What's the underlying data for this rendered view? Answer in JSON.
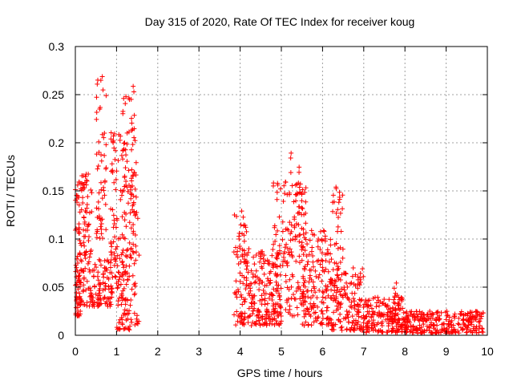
{
  "chart_data": {
    "type": "scatter",
    "title": "Day 315 of 2020, Rate Of TEC Index for receiver koug",
    "xlabel": "GPS time / hours",
    "ylabel": "ROTI / TECUs",
    "xlim": [
      0,
      10
    ],
    "ylim": [
      0,
      0.3
    ],
    "xticks": [
      0,
      1,
      2,
      3,
      4,
      5,
      6,
      7,
      8,
      9,
      10
    ],
    "yticks": [
      0,
      0.05,
      0.1,
      0.15,
      0.2,
      0.25,
      0.3
    ],
    "xtick_labels": [
      "0",
      "1",
      "2",
      "3",
      "4",
      "5",
      "6",
      "7",
      "8",
      "9",
      "10"
    ],
    "ytick_labels": [
      "0",
      "0.05",
      "0.1",
      "0.15",
      "0.2",
      "0.25",
      "0.3"
    ],
    "grid": true,
    "marker": "+",
    "marker_color": "#ff0000",
    "series": [
      {
        "name": "ROTI",
        "clusters": [
          {
            "x_range": [
              0.0,
              0.12
            ],
            "y_range": [
              0.02,
              0.16
            ],
            "count": 60
          },
          {
            "x_range": [
              0.08,
              0.4
            ],
            "y_range": [
              0.03,
              0.17
            ],
            "count": 110
          },
          {
            "x_range": [
              0.4,
              0.9
            ],
            "y_range": [
              0.03,
              0.08
            ],
            "count": 90
          },
          {
            "x_range": [
              0.5,
              0.75
            ],
            "y_range": [
              0.1,
              0.27
            ],
            "count": 55
          },
          {
            "x_range": [
              0.85,
              1.15
            ],
            "y_range": [
              0.06,
              0.22
            ],
            "count": 70
          },
          {
            "x_range": [
              1.0,
              1.35
            ],
            "y_range": [
              0.005,
              0.08
            ],
            "count": 70
          },
          {
            "x_range": [
              1.15,
              1.45
            ],
            "y_range": [
              0.08,
              0.26
            ],
            "count": 80
          },
          {
            "x_range": [
              1.35,
              1.55
            ],
            "y_range": [
              0.01,
              0.2
            ],
            "count": 40
          },
          {
            "x_range": [
              3.85,
              4.2
            ],
            "y_range": [
              0.01,
              0.13
            ],
            "count": 60
          },
          {
            "x_range": [
              4.0,
              5.0
            ],
            "y_range": [
              0.01,
              0.09
            ],
            "count": 200
          },
          {
            "x_range": [
              4.8,
              5.6
            ],
            "y_range": [
              0.02,
              0.16
            ],
            "count": 160
          },
          {
            "x_range": [
              5.2,
              5.5
            ],
            "y_range": [
              0.1,
              0.19
            ],
            "count": 30
          },
          {
            "x_range": [
              5.5,
              6.2
            ],
            "y_range": [
              0.01,
              0.11
            ],
            "count": 150
          },
          {
            "x_range": [
              6.2,
              6.5
            ],
            "y_range": [
              0.03,
              0.16
            ],
            "count": 45
          },
          {
            "x_range": [
              6.2,
              7.0
            ],
            "y_range": [
              0.005,
              0.07
            ],
            "count": 150
          },
          {
            "x_range": [
              7.0,
              8.0
            ],
            "y_range": [
              0.003,
              0.04
            ],
            "count": 180
          },
          {
            "x_range": [
              7.7,
              7.9
            ],
            "y_range": [
              0.02,
              0.055
            ],
            "count": 15
          },
          {
            "x_range": [
              8.0,
              9.9
            ],
            "y_range": [
              0.002,
              0.025
            ],
            "count": 280
          }
        ]
      }
    ]
  }
}
